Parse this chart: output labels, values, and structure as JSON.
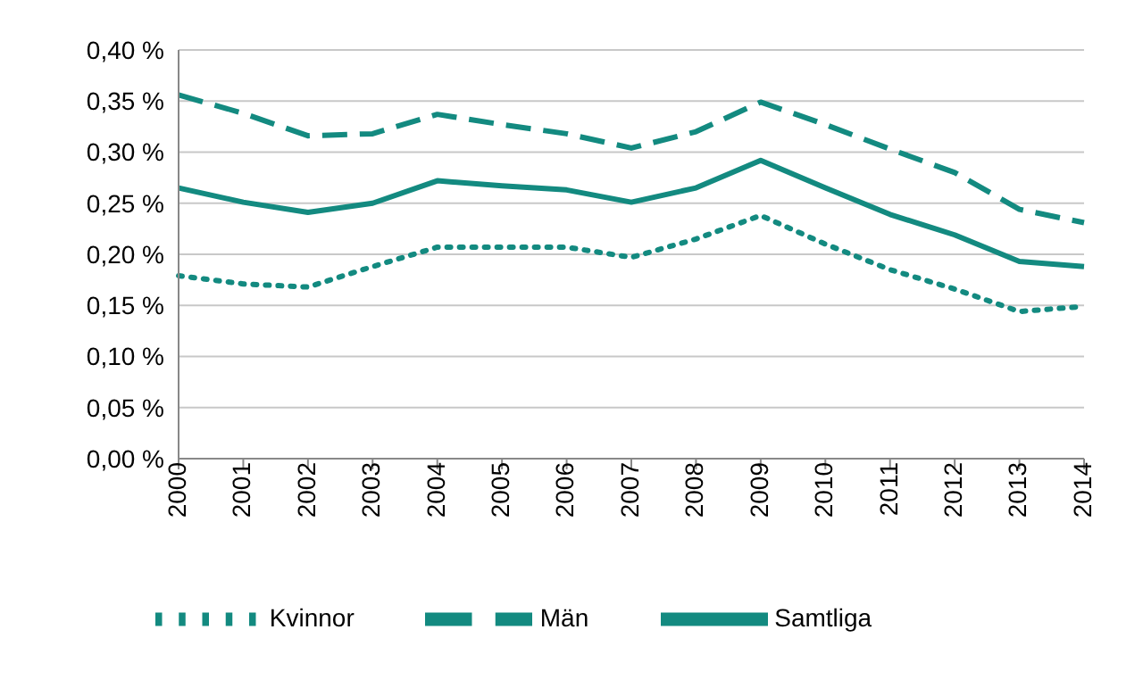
{
  "chart_data": {
    "type": "line",
    "categories": [
      "2000",
      "2001",
      "2002",
      "2003",
      "2004",
      "2005",
      "2006",
      "2007",
      "2008",
      "2009",
      "2010",
      "2011",
      "2012",
      "2013",
      "2014"
    ],
    "series": [
      {
        "name": "Samtliga",
        "color": "#138a80",
        "line_style": "solid",
        "values": [
          0.265,
          0.251,
          0.241,
          0.25,
          0.272,
          0.267,
          0.263,
          0.251,
          0.265,
          0.292,
          0.265,
          0.239,
          0.219,
          0.193,
          0.188
        ]
      },
      {
        "name": "Män",
        "color": "#138a80",
        "line_style": "dashed",
        "values": [
          0.356,
          0.338,
          0.316,
          0.318,
          0.337,
          0.327,
          0.318,
          0.304,
          0.32,
          0.349,
          0.327,
          0.303,
          0.28,
          0.244,
          0.231
        ]
      },
      {
        "name": "Kvinnor",
        "color": "#138a80",
        "line_style": "dotted",
        "values": [
          0.179,
          0.171,
          0.168,
          0.188,
          0.207,
          0.207,
          0.207,
          0.197,
          0.215,
          0.238,
          0.21,
          0.185,
          0.166,
          0.144,
          0.149
        ]
      }
    ],
    "ylim": [
      0,
      0.4
    ],
    "yticks": [
      {
        "value": 0,
        "label": "0,00 %"
      },
      {
        "value": 0.05,
        "label": "0,05 %"
      },
      {
        "value": 0.1,
        "label": "0,10 %"
      },
      {
        "value": 0.15,
        "label": "0,15 %"
      },
      {
        "value": 0.2,
        "label": "0,20 %"
      },
      {
        "value": 0.25,
        "label": "0,25 %"
      },
      {
        "value": 0.3,
        "label": "0,30 %"
      },
      {
        "value": 0.35,
        "label": "0,35 %"
      },
      {
        "value": 0.4,
        "label": "0,40 %"
      }
    ],
    "grid": "y",
    "legend": "bottom",
    "marker": "none"
  }
}
